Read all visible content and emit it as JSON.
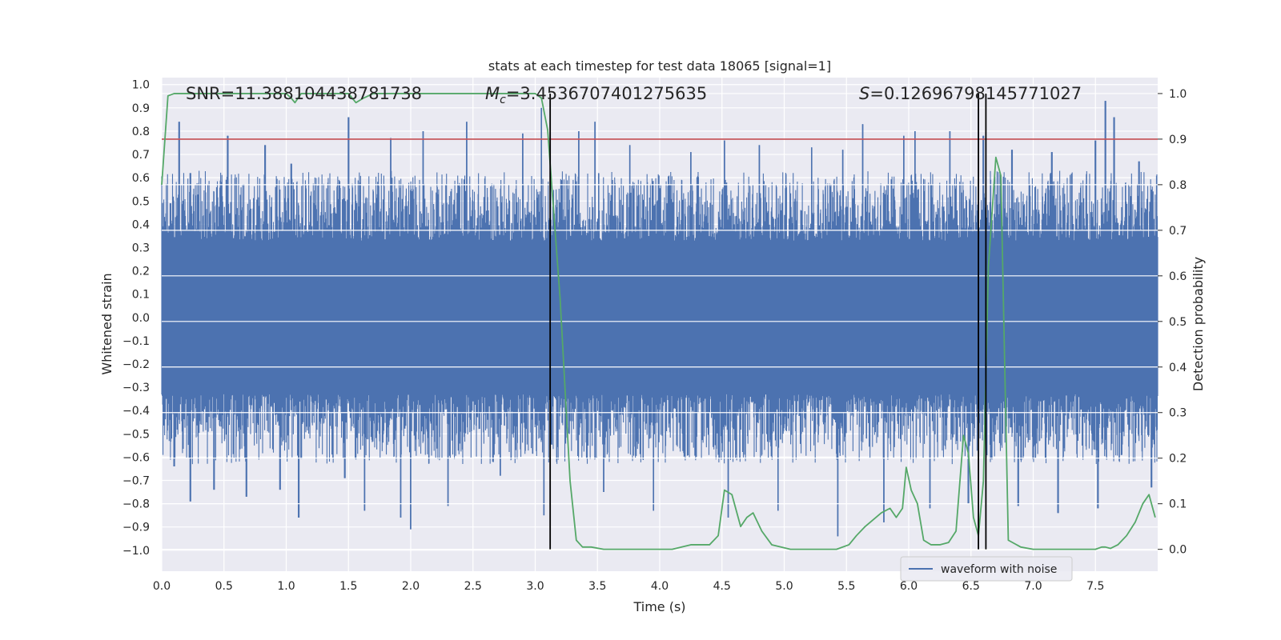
{
  "chart_data": {
    "type": "line",
    "title": "stats at each timestep for test data 18065 [signal=1]",
    "xlabel": "Time (s)",
    "ylabel_left": "Whitened strain",
    "ylabel_right": "Detection probability",
    "xlim": [
      0.0,
      8.0
    ],
    "ylim_left": [
      -1.09,
      1.03
    ],
    "ylim_right": [
      -0.048,
      1.035
    ],
    "x_ticks": [
      0.0,
      0.5,
      1.0,
      1.5,
      2.0,
      2.5,
      3.0,
      3.5,
      4.0,
      4.5,
      5.0,
      5.5,
      6.0,
      6.5,
      7.0,
      7.5
    ],
    "x_tick_labels": [
      "0.0",
      "0.5",
      "1.0",
      "1.5",
      "2.0",
      "2.5",
      "3.0",
      "3.5",
      "4.0",
      "4.5",
      "5.0",
      "5.5",
      "6.0",
      "6.5",
      "7.0",
      "7.5"
    ],
    "y_left_ticks": [
      1.0,
      0.9,
      0.8,
      0.7,
      0.6,
      0.5,
      0.4,
      0.3,
      0.2,
      0.1,
      0.0,
      -0.1,
      -0.2,
      -0.3,
      -0.4,
      -0.5,
      -0.6,
      -0.7,
      -0.8,
      -0.9,
      -1.0
    ],
    "y_left_tick_labels": [
      "1.0",
      "0.9",
      "0.8",
      "0.7",
      "0.6",
      "0.5",
      "0.4",
      "0.3",
      "0.2",
      "0.1",
      "0.0",
      "−0.1",
      "−0.2",
      "−0.3",
      "−0.4",
      "−0.5",
      "−0.6",
      "−0.7",
      "−0.8",
      "−0.9",
      "−1.0"
    ],
    "y_right_ticks": [
      1.0,
      0.9,
      0.8,
      0.7,
      0.6,
      0.5,
      0.4,
      0.3,
      0.2,
      0.1,
      0.0
    ],
    "y_right_tick_labels": [
      "1.0",
      "0.9",
      "0.8",
      "0.7",
      "0.6",
      "0.5",
      "0.4",
      "0.3",
      "0.2",
      "0.1",
      "0.0"
    ],
    "grid": true,
    "threshold": {
      "value": 0.9,
      "axis": "right",
      "color": "#c44e52"
    },
    "vertical_markers": [
      3.12,
      6.56,
      6.62
    ],
    "annotations": {
      "snr": "SNR=11.388104438781738",
      "mc_symbol": "M",
      "mc_sub": "c",
      "mc_value": "=3.4536707401275635",
      "s_symbol": "S",
      "s_value": "=0.12696798145771027"
    },
    "waveform": {
      "name": "waveform with noise",
      "color": "#4c72b0",
      "description_free": true,
      "amplitude_core": 0.33,
      "envelope_peaks": [
        {
          "x": 0.07,
          "y": 0.49
        },
        {
          "x": 0.14,
          "y": 0.84
        },
        {
          "x": 0.23,
          "y": 0.62
        },
        {
          "x": 0.53,
          "y": 0.78
        },
        {
          "x": 0.83,
          "y": 0.74
        },
        {
          "x": 1.04,
          "y": 0.66
        },
        {
          "x": 1.5,
          "y": 0.86
        },
        {
          "x": 1.84,
          "y": 0.77
        },
        {
          "x": 2.1,
          "y": 0.8
        },
        {
          "x": 2.45,
          "y": 0.84
        },
        {
          "x": 2.9,
          "y": 0.79
        },
        {
          "x": 3.05,
          "y": 0.9
        },
        {
          "x": 3.35,
          "y": 0.8
        },
        {
          "x": 3.48,
          "y": 0.84
        },
        {
          "x": 3.76,
          "y": 0.74
        },
        {
          "x": 4.25,
          "y": 0.71
        },
        {
          "x": 4.52,
          "y": 0.76
        },
        {
          "x": 4.8,
          "y": 0.74
        },
        {
          "x": 5.22,
          "y": 0.73
        },
        {
          "x": 5.47,
          "y": 0.72
        },
        {
          "x": 5.63,
          "y": 0.83
        },
        {
          "x": 5.96,
          "y": 0.78
        },
        {
          "x": 6.05,
          "y": 0.8
        },
        {
          "x": 6.33,
          "y": 0.8
        },
        {
          "x": 6.6,
          "y": 0.78
        },
        {
          "x": 6.83,
          "y": 0.72
        },
        {
          "x": 7.15,
          "y": 0.71
        },
        {
          "x": 7.5,
          "y": 0.76
        },
        {
          "x": 7.58,
          "y": 0.93
        },
        {
          "x": 7.65,
          "y": 0.86
        },
        {
          "x": 7.85,
          "y": 0.67
        }
      ],
      "trough_peaks": [
        {
          "x": 0.1,
          "y": -0.64
        },
        {
          "x": 0.23,
          "y": -0.79
        },
        {
          "x": 0.42,
          "y": -0.74
        },
        {
          "x": 0.68,
          "y": -0.77
        },
        {
          "x": 0.95,
          "y": -0.74
        },
        {
          "x": 1.1,
          "y": -0.86
        },
        {
          "x": 1.47,
          "y": -0.69
        },
        {
          "x": 1.63,
          "y": -0.83
        },
        {
          "x": 1.92,
          "y": -0.86
        },
        {
          "x": 2.0,
          "y": -0.91
        },
        {
          "x": 2.3,
          "y": -0.81
        },
        {
          "x": 2.72,
          "y": -0.68
        },
        {
          "x": 3.07,
          "y": -0.85
        },
        {
          "x": 3.55,
          "y": -0.75
        },
        {
          "x": 3.95,
          "y": -0.83
        },
        {
          "x": 4.55,
          "y": -0.86
        },
        {
          "x": 4.95,
          "y": -0.83
        },
        {
          "x": 5.43,
          "y": -0.94
        },
        {
          "x": 5.8,
          "y": -0.88
        },
        {
          "x": 6.17,
          "y": -0.82
        },
        {
          "x": 6.48,
          "y": -0.8
        },
        {
          "x": 6.88,
          "y": -0.81
        },
        {
          "x": 7.2,
          "y": -0.84
        },
        {
          "x": 7.52,
          "y": -0.82
        },
        {
          "x": 7.95,
          "y": -0.73
        }
      ]
    },
    "detection_probability": {
      "name": "detection probability",
      "color": "#55a868",
      "x": [
        0.0,
        0.05,
        0.1,
        0.15,
        0.2,
        0.3,
        0.4,
        0.5,
        0.6,
        0.7,
        0.8,
        0.9,
        1.0,
        1.04,
        1.07,
        1.12,
        1.2,
        1.3,
        1.4,
        1.5,
        1.56,
        1.62,
        1.7,
        1.8,
        1.9,
        2.0,
        2.2,
        2.4,
        2.5,
        2.6,
        2.8,
        3.0,
        3.05,
        3.1,
        3.2,
        3.28,
        3.33,
        3.38,
        3.45,
        3.55,
        3.7,
        3.9,
        4.1,
        4.25,
        4.4,
        4.47,
        4.52,
        4.58,
        4.65,
        4.7,
        4.75,
        4.82,
        4.9,
        5.05,
        5.25,
        5.42,
        5.52,
        5.58,
        5.65,
        5.78,
        5.85,
        5.9,
        5.95,
        5.98,
        6.02,
        6.07,
        6.12,
        6.18,
        6.25,
        6.32,
        6.38,
        6.44,
        6.48,
        6.52,
        6.56,
        6.6,
        6.64,
        6.7,
        6.74,
        6.8,
        6.9,
        7.0,
        7.1,
        7.3,
        7.5,
        7.55,
        7.58,
        7.62,
        7.68,
        7.75,
        7.82,
        7.88,
        7.93,
        7.98
      ],
      "y": [
        0.8,
        0.995,
        1.0,
        1.0,
        1.0,
        1.0,
        1.0,
        1.0,
        1.0,
        1.0,
        1.0,
        1.0,
        1.0,
        0.99,
        0.98,
        1.0,
        1.0,
        1.0,
        1.0,
        1.0,
        0.98,
        0.99,
        1.0,
        1.0,
        1.0,
        1.0,
        1.0,
        1.0,
        1.0,
        1.0,
        1.0,
        1.0,
        0.99,
        0.92,
        0.55,
        0.15,
        0.02,
        0.005,
        0.005,
        0.0,
        0.0,
        0.0,
        0.0,
        0.01,
        0.01,
        0.03,
        0.13,
        0.12,
        0.05,
        0.07,
        0.08,
        0.04,
        0.01,
        0.0,
        0.0,
        0.0,
        0.01,
        0.03,
        0.05,
        0.08,
        0.09,
        0.07,
        0.09,
        0.18,
        0.13,
        0.1,
        0.02,
        0.01,
        0.01,
        0.015,
        0.04,
        0.25,
        0.21,
        0.07,
        0.03,
        0.15,
        0.62,
        0.86,
        0.82,
        0.02,
        0.005,
        0.0,
        0.0,
        0.0,
        0.0,
        0.005,
        0.005,
        0.002,
        0.01,
        0.03,
        0.06,
        0.1,
        0.12,
        0.07
      ]
    },
    "legend": {
      "position": "lower-right",
      "entries": [
        "waveform with noise"
      ]
    }
  }
}
